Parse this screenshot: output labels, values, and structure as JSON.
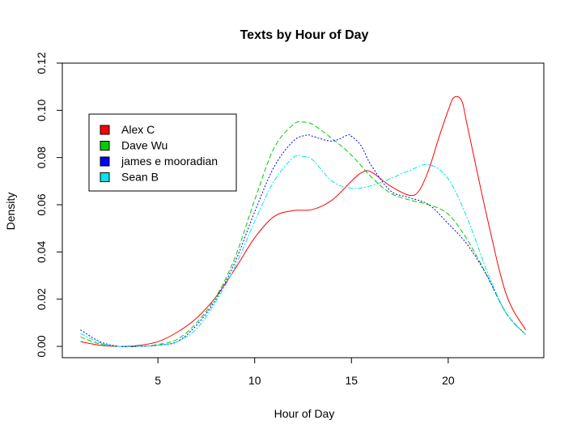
{
  "chart_data": {
    "type": "line",
    "title": "Texts by Hour of Day",
    "xlabel": "Hour of Day",
    "ylabel": "Density",
    "xlim": [
      0.06,
      24.94
    ],
    "ylim": [
      -0.0048,
      0.12
    ],
    "x_ticks": [
      5,
      10,
      15,
      20
    ],
    "x_tick_labels": [
      "5",
      "10",
      "15",
      "20"
    ],
    "y_ticks": [
      0.0,
      0.02,
      0.04,
      0.06,
      0.08,
      0.1,
      0.12
    ],
    "y_tick_labels": [
      "0.00",
      "0.02",
      "0.04",
      "0.06",
      "0.08",
      "0.10",
      "0.12"
    ],
    "grid": false,
    "legend_position": "top-left",
    "series": [
      {
        "name": "Alex C",
        "color": "#ff0000",
        "dash": "solid",
        "x": [
          1,
          2,
          3,
          4,
          5,
          6,
          7,
          8,
          9,
          10,
          11,
          12,
          13,
          14,
          15,
          15.5,
          16,
          17,
          18,
          18.5,
          19,
          19.5,
          20,
          20.3,
          20.7,
          21,
          22,
          23,
          24
        ],
        "y": [
          0.002,
          0.0005,
          0.0,
          0.0004,
          0.002,
          0.006,
          0.012,
          0.021,
          0.033,
          0.046,
          0.055,
          0.0575,
          0.058,
          0.062,
          0.07,
          0.0735,
          0.074,
          0.068,
          0.064,
          0.066,
          0.075,
          0.088,
          0.1,
          0.1055,
          0.104,
          0.093,
          0.055,
          0.022,
          0.007
        ]
      },
      {
        "name": "Dave Wu",
        "color": "#00cd00",
        "dash": "6,3",
        "x": [
          1,
          2,
          3,
          4,
          5,
          6,
          7,
          8,
          9,
          10,
          11,
          12,
          12.5,
          13,
          14,
          15,
          16,
          17,
          18,
          19,
          20,
          21,
          22,
          23,
          24
        ],
        "y": [
          0.004,
          0.001,
          0.0,
          0.0,
          0.0008,
          0.003,
          0.01,
          0.021,
          0.038,
          0.062,
          0.084,
          0.094,
          0.095,
          0.094,
          0.088,
          0.081,
          0.072,
          0.065,
          0.062,
          0.06,
          0.056,
          0.045,
          0.03,
          0.014,
          0.005
        ]
      },
      {
        "name": "james e mooradian",
        "color": "#0000ff",
        "dash": "2,2",
        "x": [
          1,
          2,
          3,
          4,
          5,
          6,
          7,
          8,
          9,
          10,
          11,
          12,
          12.7,
          13,
          14,
          14.8,
          15,
          15.5,
          16,
          17,
          18,
          19,
          20,
          21,
          22,
          23,
          24
        ],
        "y": [
          0.007,
          0.002,
          0.0,
          0.0,
          0.0005,
          0.002,
          0.009,
          0.02,
          0.036,
          0.057,
          0.076,
          0.087,
          0.0895,
          0.089,
          0.087,
          0.0895,
          0.089,
          0.085,
          0.077,
          0.066,
          0.063,
          0.06,
          0.052,
          0.043,
          0.03,
          0.014,
          0.005
        ]
      },
      {
        "name": "Sean B",
        "color": "#00e5ee",
        "dash": "6,2,2,2",
        "x": [
          1,
          2,
          3,
          4,
          5,
          6,
          7,
          8,
          9,
          10,
          11,
          12,
          12.5,
          13,
          14,
          15,
          16,
          17,
          18,
          19,
          20,
          21,
          22,
          23,
          24
        ],
        "y": [
          0.0055,
          0.0015,
          0.0,
          0.0,
          0.0005,
          0.002,
          0.0075,
          0.019,
          0.034,
          0.053,
          0.07,
          0.08,
          0.0805,
          0.079,
          0.07,
          0.067,
          0.068,
          0.071,
          0.0745,
          0.077,
          0.071,
          0.054,
          0.032,
          0.014,
          0.005
        ]
      }
    ]
  }
}
